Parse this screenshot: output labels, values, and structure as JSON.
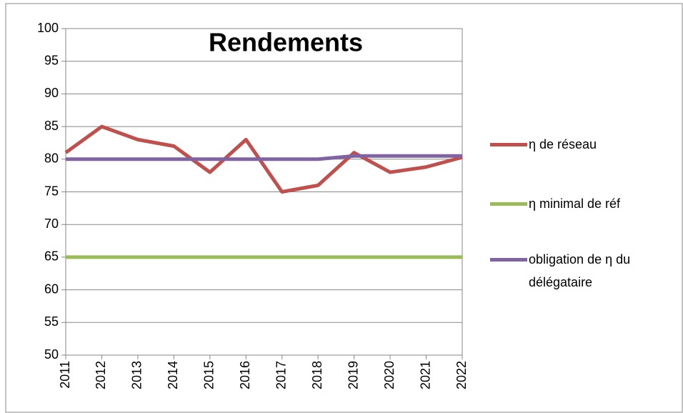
{
  "chart_data": {
    "type": "line",
    "title": "Rendements",
    "categories": [
      "2011",
      "2012",
      "2013",
      "2014",
      "2015",
      "2016",
      "2017",
      "2018",
      "2019",
      "2020",
      "2021",
      "2022"
    ],
    "series": [
      {
        "name": "η de réseau",
        "color": "#c0504d",
        "values": [
          81,
          85,
          83,
          82,
          78,
          83,
          75,
          76,
          81,
          78,
          78.8,
          80.3
        ]
      },
      {
        "name": "η minimal de réf",
        "color": "#9bbb59",
        "values": [
          65,
          65,
          65,
          65,
          65,
          65,
          65,
          65,
          65,
          65,
          65,
          65
        ]
      },
      {
        "name": "obligation de η du délégataire",
        "color": "#8064a2",
        "values": [
          80,
          80,
          80,
          80,
          80,
          80,
          80,
          80,
          80.5,
          80.5,
          80.5,
          80.5
        ]
      }
    ],
    "ylim": [
      50,
      100
    ],
    "yticks": [
      50,
      55,
      60,
      65,
      70,
      75,
      80,
      85,
      90,
      95,
      100
    ],
    "grid": true,
    "legend": "right"
  }
}
